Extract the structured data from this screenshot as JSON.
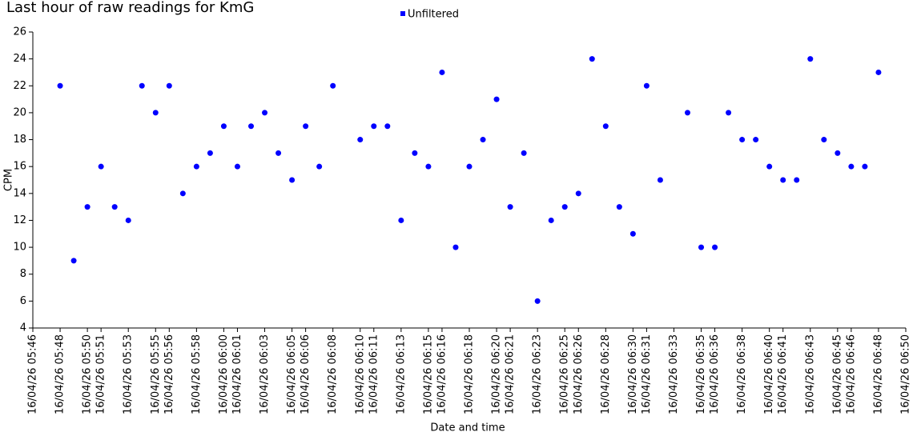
{
  "chart_data": {
    "type": "scatter",
    "title": "Last hour of raw readings for KmG",
    "x_label": "Date and time",
    "y_label": "CPM",
    "x": [
      "16/04/26 05:48",
      "16/04/26 05:49",
      "16/04/26 05:50",
      "16/04/26 05:51",
      "16/04/26 05:52",
      "16/04/26 05:53",
      "16/04/26 05:54",
      "16/04/26 05:55",
      "16/04/26 05:56",
      "16/04/26 05:57",
      "16/04/26 05:58",
      "16/04/26 05:59",
      "16/04/26 06:00",
      "16/04/26 06:01",
      "16/04/26 06:02",
      "16/04/26 06:03",
      "16/04/26 06:04",
      "16/04/26 06:05",
      "16/04/26 06:06",
      "16/04/26 06:07",
      "16/04/26 06:08",
      "16/04/26 06:10",
      "16/04/26 06:11",
      "16/04/26 06:12",
      "16/04/26 06:13",
      "16/04/26 06:14",
      "16/04/26 06:15",
      "16/04/26 06:16",
      "16/04/26 06:17",
      "16/04/26 06:18",
      "16/04/26 06:19",
      "16/04/26 06:20",
      "16/04/26 06:21",
      "16/04/26 06:22",
      "16/04/26 06:23",
      "16/04/26 06:24",
      "16/04/26 06:25",
      "16/04/26 06:26",
      "16/04/26 06:27",
      "16/04/26 06:28",
      "16/04/26 06:29",
      "16/04/26 06:30",
      "16/04/26 06:31",
      "16/04/26 06:32",
      "16/04/26 06:34",
      "16/04/26 06:35",
      "16/04/26 06:36",
      "16/04/26 06:37",
      "16/04/26 06:38",
      "16/04/26 06:39",
      "16/04/26 06:40",
      "16/04/26 06:41",
      "16/04/26 06:42",
      "16/04/26 06:43",
      "16/04/26 06:44",
      "16/04/26 06:45",
      "16/04/26 06:46",
      "16/04/26 06:47",
      "16/04/26 06:48"
    ],
    "series": [
      {
        "name": "Unfiltered",
        "color": "#0000ff",
        "values": [
          22,
          9,
          13,
          16,
          13,
          12,
          22,
          20,
          22,
          14,
          16,
          17,
          19,
          16,
          19,
          20,
          17,
          15,
          19,
          16,
          22,
          18,
          19,
          19,
          12,
          17,
          16,
          23,
          10,
          16,
          18,
          21,
          13,
          17,
          6,
          12,
          13,
          14,
          24,
          19,
          13,
          11,
          22,
          15,
          20,
          10,
          10,
          20,
          18,
          18,
          16,
          15,
          15,
          24,
          18,
          17,
          16,
          16,
          23
        ]
      }
    ],
    "xlim": [
      "16/04/26 05:46",
      "16/04/26 06:50"
    ],
    "xticks": [
      "16/04/26 05:46",
      "16/04/26 05:48",
      "16/04/26 05:50",
      "16/04/26 05:51",
      "16/04/26 05:53",
      "16/04/26 05:55",
      "16/04/26 05:56",
      "16/04/26 05:58",
      "16/04/26 06:00",
      "16/04/26 06:01",
      "16/04/26 06:03",
      "16/04/26 06:05",
      "16/04/26 06:06",
      "16/04/26 06:08",
      "16/04/26 06:10",
      "16/04/26 06:11",
      "16/04/26 06:13",
      "16/04/26 06:15",
      "16/04/26 06:16",
      "16/04/26 06:18",
      "16/04/26 06:20",
      "16/04/26 06:21",
      "16/04/26 06:23",
      "16/04/26 06:25",
      "16/04/26 06:26",
      "16/04/26 06:28",
      "16/04/26 06:30",
      "16/04/26 06:31",
      "16/04/26 06:33",
      "16/04/26 06:35",
      "16/04/26 06:36",
      "16/04/26 06:38",
      "16/04/26 06:40",
      "16/04/26 06:41",
      "16/04/26 06:43",
      "16/04/26 06:45",
      "16/04/26 06:46",
      "16/04/26 06:48",
      "16/04/26 06:50"
    ],
    "ylim": [
      4,
      26
    ],
    "yticks": [
      4,
      6,
      8,
      10,
      12,
      14,
      16,
      18,
      20,
      22,
      24,
      26
    ],
    "grid": false,
    "legend": "top"
  }
}
